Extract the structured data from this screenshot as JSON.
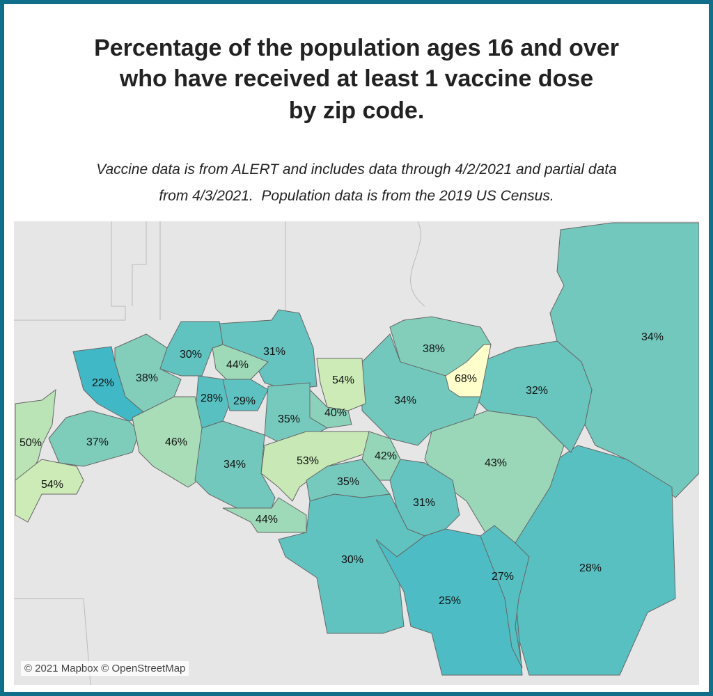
{
  "header": {
    "title": [
      "Percentage of the population ages 16 and over",
      "who have received at least 1 vaccine dose",
      "by zip code."
    ],
    "subtitle": [
      "Vaccine data is from ALERT and includes data through 4/2/2021 and partial data",
      "from 4/3/2021.  Population data is from the 2019 US Census."
    ]
  },
  "map": {
    "regions": [
      {
        "value": 34,
        "label": "34%"
      },
      {
        "value": 28,
        "label": "28%"
      },
      {
        "value": 43,
        "label": "43%"
      },
      {
        "value": 32,
        "label": "32%"
      },
      {
        "value": 38,
        "label": "38%"
      },
      {
        "value": 68,
        "label": "68%"
      },
      {
        "value": 34,
        "label": "34%"
      },
      {
        "value": 54,
        "label": "54%"
      },
      {
        "value": 40,
        "label": "40%"
      },
      {
        "value": 31,
        "label": "31%"
      },
      {
        "value": 44,
        "label": "44%"
      },
      {
        "value": 30,
        "label": "30%"
      },
      {
        "value": 22,
        "label": "22%"
      },
      {
        "value": 38,
        "label": "38%"
      },
      {
        "value": 28,
        "label": "28%"
      },
      {
        "value": 29,
        "label": "29%"
      },
      {
        "value": 35,
        "label": "35%"
      },
      {
        "value": 50,
        "label": "50%"
      },
      {
        "value": 37,
        "label": "37%"
      },
      {
        "value": 46,
        "label": "46%"
      },
      {
        "value": 53,
        "label": "53%"
      },
      {
        "value": 42,
        "label": "42%"
      },
      {
        "value": 34,
        "label": "34%"
      },
      {
        "value": 54,
        "label": "54%"
      },
      {
        "value": 35,
        "label": "35%"
      },
      {
        "value": 31,
        "label": "31%"
      },
      {
        "value": 44,
        "label": "44%"
      },
      {
        "value": 30,
        "label": "30%"
      },
      {
        "value": 25,
        "label": "25%"
      },
      {
        "value": 27,
        "label": "27%"
      }
    ],
    "attribution": "© 2021 Mapbox © OpenStreetMap"
  }
}
